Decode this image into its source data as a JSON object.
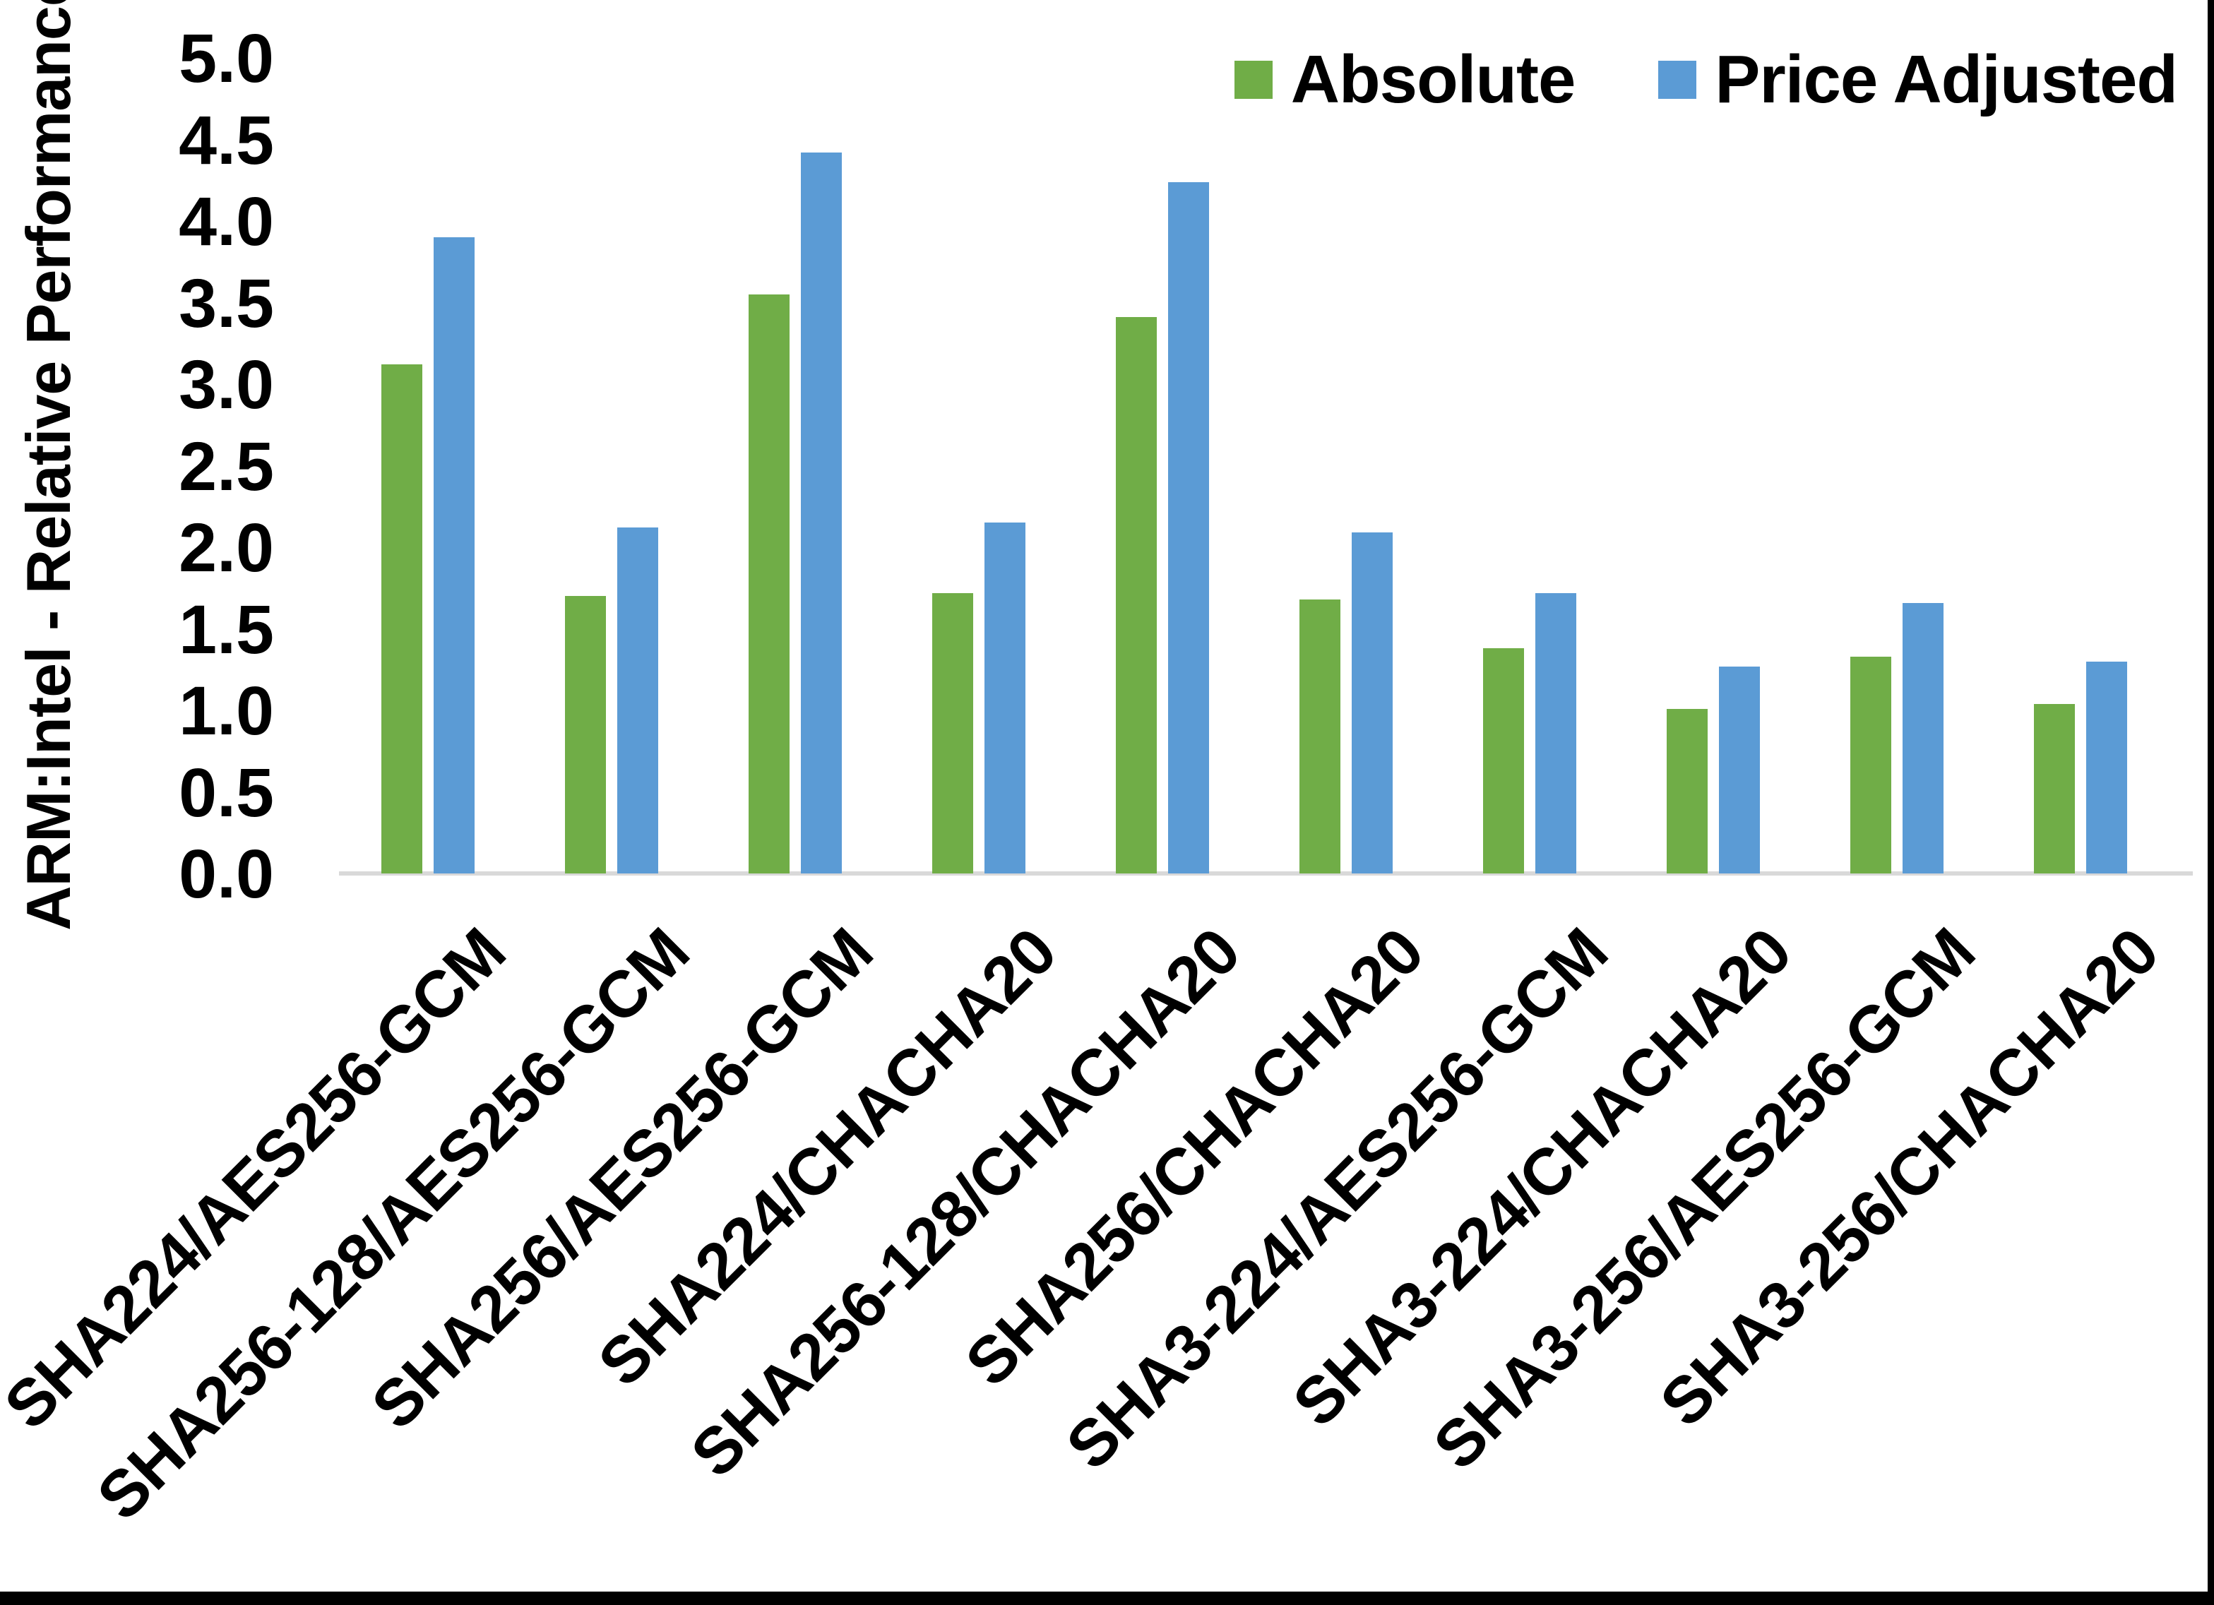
{
  "page": {
    "background": "#FFFFFF",
    "edge_border_color": "#000000"
  },
  "chart_data": {
    "type": "bar",
    "title": "",
    "xlabel": "",
    "ylabel": "ARM:Intel - Relative Performance",
    "ylim": [
      0,
      5
    ],
    "y_tick_step": 0.5,
    "y_tick_labels": [
      "5.0",
      "4.5",
      "4.0",
      "3.5",
      "3.0",
      "2.5",
      "2.0",
      "1.5",
      "1.0",
      "0.5",
      "0.0"
    ],
    "grid": false,
    "legend_position": "top-right",
    "axis_line_color": "#D9D9D9",
    "text_color": "#000000",
    "categories": [
      "SHA224/AES256-GCM",
      "SHA256-128/AES256-GCM",
      "SHA256/AES256-GCM",
      "SHA224/CHACHA20",
      "SHA256-128/CHACHA20",
      "SHA256/CHACHA20",
      "SHA3-224/AES256-GCM",
      "SHA3-224/CHACHA20",
      "SHA3-256/AES256-GCM",
      "SHA3-256/CHACHA20"
    ],
    "series": [
      {
        "name": "Absolute",
        "color": "#70AD47",
        "values": [
          3.12,
          1.7,
          3.55,
          1.72,
          3.41,
          1.68,
          1.38,
          1.01,
          1.33,
          1.04
        ]
      },
      {
        "name": "Price Adjusted",
        "color": "#5B9BD5",
        "values": [
          3.9,
          2.12,
          4.42,
          2.15,
          4.24,
          2.09,
          1.72,
          1.27,
          1.66,
          1.3
        ]
      }
    ]
  }
}
